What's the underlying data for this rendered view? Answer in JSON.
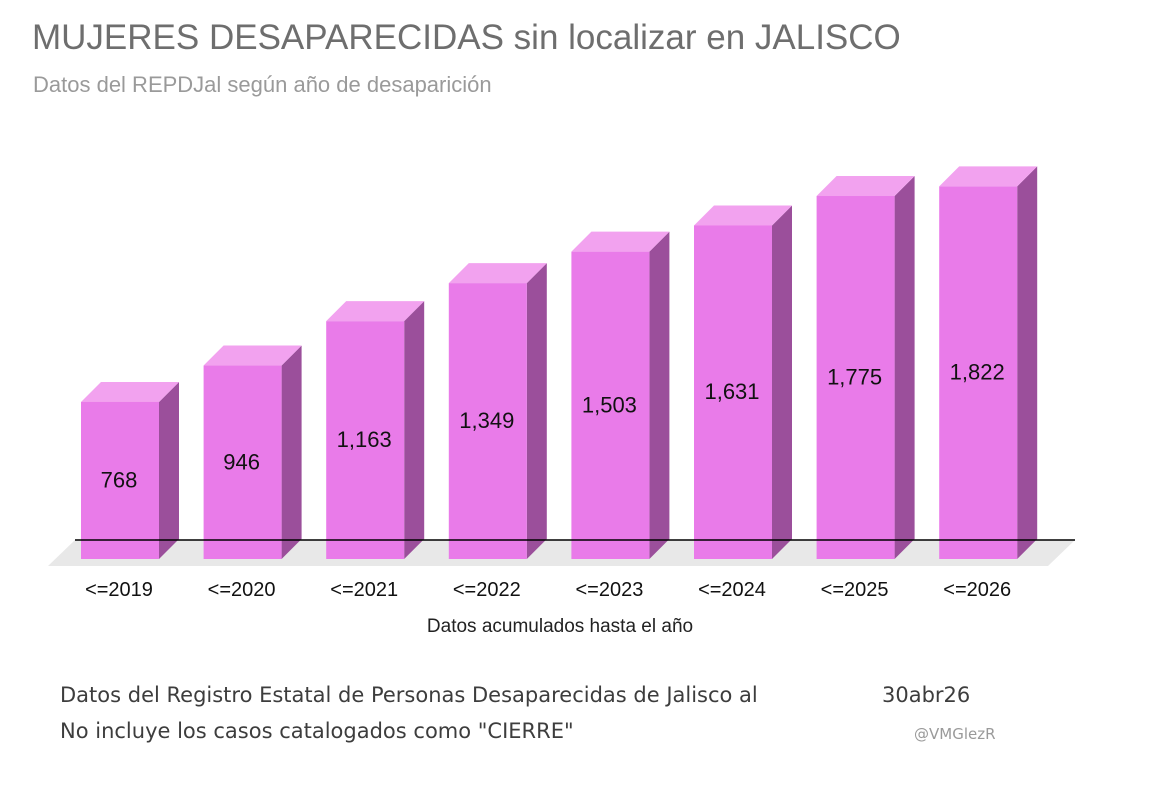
{
  "title": "MUJERES DESAPARECIDAS sin localizar en JALISCO",
  "subtitle": "Datos del REPDJal según año de desaparición",
  "chart_data": {
    "type": "bar",
    "categories": [
      "<=2019",
      "<=2020",
      "<=2021",
      "<=2022",
      "<=2023",
      "<=2024",
      "<=2025",
      "<=2026"
    ],
    "values": [
      768,
      946,
      1163,
      1349,
      1503,
      1631,
      1775,
      1822
    ],
    "value_labels": [
      "768",
      "946",
      "1,163",
      "1,349",
      "1,503",
      "1,631",
      "1,775",
      "1,822"
    ],
    "xlabel": "Datos acumulados hasta el año",
    "ylabel": "",
    "ylim": [
      0,
      1900
    ],
    "style": "3d",
    "grid": false,
    "legend": "none",
    "colors": {
      "bar_front": "#e97be9",
      "bar_top": "#f2a2ef",
      "bar_side": "#9b4f9b",
      "floor": "#e8e8e8",
      "baseline": "#000000"
    }
  },
  "footer": {
    "source_line": "Datos del Registro Estatal de Personas Desaparecidas de Jalisco al",
    "note_line": "No incluye los casos catalogados como \"CIERRE\"",
    "date": "30abr26",
    "handle": "@VMGlezR"
  }
}
